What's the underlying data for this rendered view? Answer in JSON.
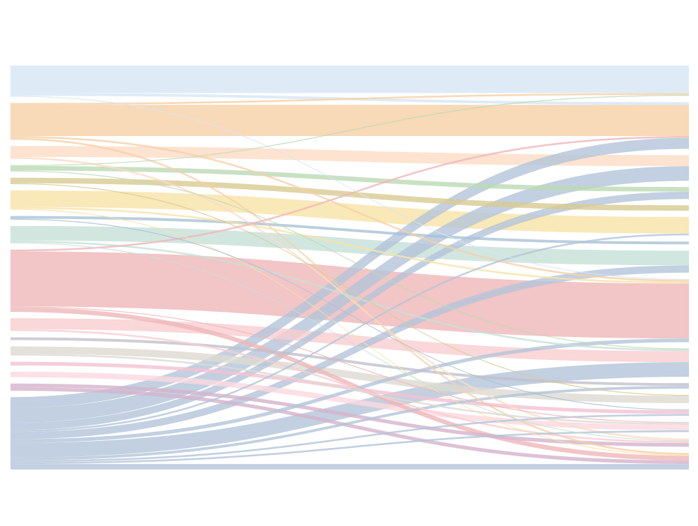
{
  "chart_data": {
    "type": "sankey",
    "nodes": [
      {
        "color": "#d6e6f5"
      },
      {
        "color": "#f6cfa6"
      },
      {
        "color": "#fcdcc4"
      },
      {
        "color": "#bcd9b4"
      },
      {
        "color": "#d8ca92"
      },
      {
        "color": "#f7e2a6"
      },
      {
        "color": "#a9c2d4"
      },
      {
        "color": "#c7e0d8"
      },
      {
        "color": "#efb6b8"
      },
      {
        "color": "#f9cdd0"
      },
      {
        "color": "#c0c0ca"
      },
      {
        "color": "#dddad2"
      },
      {
        "color": "#f2c2d2"
      },
      {
        "color": "#fbd8e0"
      },
      {
        "color": "#d4b3cc"
      },
      {
        "color": "#b3c4d9"
      }
    ],
    "links": [
      {
        "source": 0,
        "target": 0,
        "value": 15
      },
      {
        "source": 0,
        "target": 1,
        "value": 1.5
      },
      {
        "source": 0,
        "target": 8,
        "value": 0.5
      },
      {
        "source": 1,
        "target": 0,
        "value": 1
      },
      {
        "source": 1,
        "target": 1,
        "value": 17
      },
      {
        "source": 1,
        "target": 8,
        "value": 1
      },
      {
        "source": 1,
        "target": 15,
        "value": 1
      },
      {
        "source": 2,
        "target": 2,
        "value": 6
      },
      {
        "source": 2,
        "target": 14,
        "value": 1
      },
      {
        "source": 3,
        "target": 0,
        "value": 0.5
      },
      {
        "source": 3,
        "target": 3,
        "value": 2.5
      },
      {
        "source": 3,
        "target": 9,
        "value": 0.5
      },
      {
        "source": 4,
        "target": 4,
        "value": 3
      },
      {
        "source": 4,
        "target": 11,
        "value": 0.5
      },
      {
        "source": 5,
        "target": 5,
        "value": 9
      },
      {
        "source": 5,
        "target": 8,
        "value": 1
      },
      {
        "source": 5,
        "target": 15,
        "value": 0.5
      },
      {
        "source": 6,
        "target": 6,
        "value": 1.5
      },
      {
        "source": 6,
        "target": 12,
        "value": 0.5
      },
      {
        "source": 7,
        "target": 7,
        "value": 8
      },
      {
        "source": 7,
        "target": 9,
        "value": 1
      },
      {
        "source": 7,
        "target": 14,
        "value": 0.5
      },
      {
        "source": 8,
        "target": 1,
        "value": 1
      },
      {
        "source": 8,
        "target": 8,
        "value": 30
      },
      {
        "source": 8,
        "target": 15,
        "value": 2.5
      },
      {
        "source": 8,
        "target": 13,
        "value": 0.5
      },
      {
        "source": 9,
        "target": 9,
        "value": 6
      },
      {
        "source": 9,
        "target": 14,
        "value": 1
      },
      {
        "source": 10,
        "target": 10,
        "value": 1.5
      },
      {
        "source": 11,
        "target": 11,
        "value": 4
      },
      {
        "source": 11,
        "target": 13,
        "value": 1
      },
      {
        "source": 12,
        "target": 12,
        "value": 2
      },
      {
        "source": 13,
        "target": 13,
        "value": 3
      },
      {
        "source": 14,
        "target": 14,
        "value": 2
      },
      {
        "source": 14,
        "target": 15,
        "value": 2
      },
      {
        "source": 15,
        "target": 1,
        "value": 6
      },
      {
        "source": 15,
        "target": 2,
        "value": 8
      },
      {
        "source": 15,
        "target": 3,
        "value": 4
      },
      {
        "source": 15,
        "target": 5,
        "value": 1
      },
      {
        "source": 15,
        "target": 7,
        "value": 4
      },
      {
        "source": 15,
        "target": 8,
        "value": 2
      },
      {
        "source": 15,
        "target": 9,
        "value": 8
      },
      {
        "source": 15,
        "target": 10,
        "value": 1.5
      },
      {
        "source": 15,
        "target": 12,
        "value": 1
      },
      {
        "source": 15,
        "target": 13,
        "value": 1
      },
      {
        "source": 15,
        "target": 15,
        "value": 3
      }
    ]
  }
}
